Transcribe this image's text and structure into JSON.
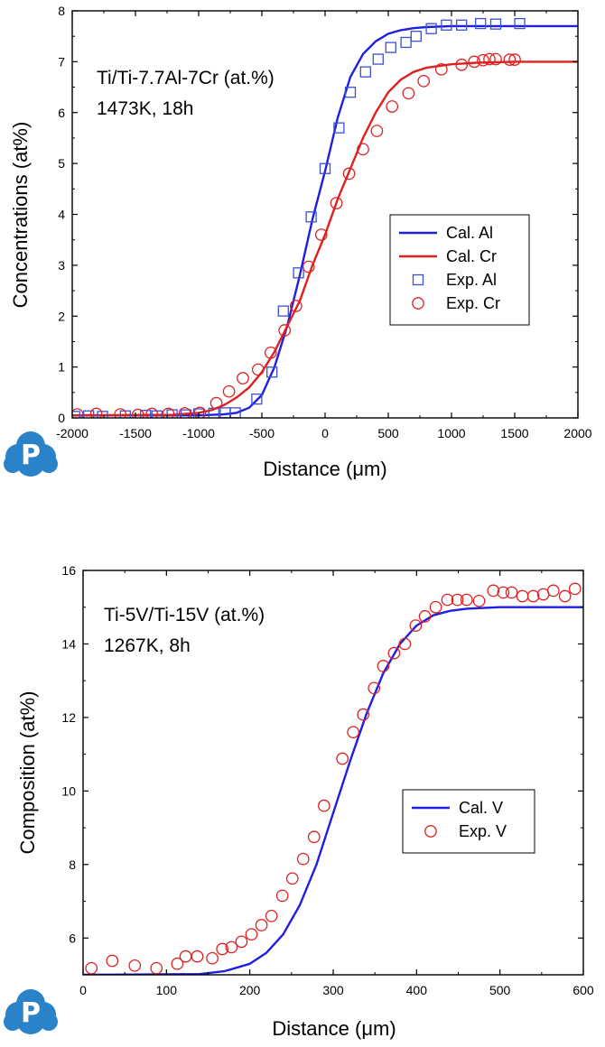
{
  "chart_data": [
    {
      "type": "line",
      "annotation": [
        "Ti/Ti-7.7Al-7Cr (at.%)",
        "1473K, 18h"
      ],
      "xlabel": "Distance (μm)",
      "ylabel": "Concentrations (at%)",
      "xlim": [
        -2000,
        2000
      ],
      "ylim": [
        0,
        8
      ],
      "xticks": [
        -2000,
        -1500,
        -1000,
        -500,
        0,
        500,
        1000,
        1500,
        2000
      ],
      "yticks": [
        0,
        1,
        2,
        3,
        4,
        5,
        6,
        7,
        8
      ],
      "legend_position": "center-right",
      "series": [
        {
          "name": "Cal. Al",
          "kind": "line",
          "color": "#1f1fe0",
          "x": [
            -2000,
            -1000,
            -800,
            -700,
            -600,
            -500,
            -400,
            -300,
            -200,
            -100,
            0,
            100,
            200,
            300,
            400,
            500,
            600,
            700,
            800,
            1000,
            1500,
            2000
          ],
          "y": [
            0.05,
            0.05,
            0.07,
            0.1,
            0.2,
            0.45,
            1.0,
            1.8,
            2.8,
            3.9,
            4.85,
            5.9,
            6.7,
            7.15,
            7.4,
            7.55,
            7.62,
            7.66,
            7.68,
            7.7,
            7.7,
            7.7
          ]
        },
        {
          "name": "Cal. Cr",
          "kind": "line",
          "color": "#e01f1f",
          "x": [
            -2000,
            -1200,
            -1000,
            -900,
            -800,
            -700,
            -600,
            -500,
            -400,
            -300,
            -200,
            -100,
            0,
            100,
            200,
            300,
            400,
            500,
            600,
            700,
            800,
            1000,
            1200,
            1500,
            2000
          ],
          "y": [
            0.05,
            0.06,
            0.1,
            0.15,
            0.25,
            0.4,
            0.6,
            0.9,
            1.3,
            1.8,
            2.3,
            3.0,
            3.6,
            4.3,
            4.9,
            5.5,
            6.0,
            6.4,
            6.65,
            6.8,
            6.88,
            6.95,
            6.98,
            7.0,
            7.0
          ]
        },
        {
          "name": "Exp. Al",
          "kind": "scatter",
          "marker": "square",
          "color": "#3a4fd6",
          "x": [
            -1980,
            -1870,
            -1760,
            -1580,
            -1420,
            -1330,
            -1210,
            -1100,
            -1000,
            -880,
            -790,
            -710,
            -540,
            -420,
            -330,
            -210,
            -110,
            0,
            110,
            200,
            320,
            420,
            520,
            640,
            720,
            840,
            960,
            1080,
            1230,
            1350,
            1540
          ],
          "y": [
            0.03,
            0.04,
            0.03,
            0.04,
            0.05,
            0.04,
            0.06,
            0.06,
            0.08,
            0.09,
            0.1,
            0.1,
            0.37,
            0.9,
            2.1,
            2.85,
            3.95,
            4.9,
            5.7,
            6.4,
            6.8,
            7.05,
            7.28,
            7.38,
            7.5,
            7.65,
            7.72,
            7.72,
            7.75,
            7.74,
            7.75
          ]
        },
        {
          "name": "Exp. Cr",
          "kind": "scatter",
          "marker": "circle",
          "color": "#e02020",
          "x": [
            -1960,
            -1810,
            -1620,
            -1480,
            -1370,
            -1240,
            -1110,
            -990,
            -860,
            -760,
            -650,
            -530,
            -430,
            -320,
            -230,
            -130,
            -30,
            90,
            190,
            300,
            410,
            530,
            660,
            780,
            920,
            1080,
            1180,
            1250,
            1300,
            1350,
            1460,
            1500
          ],
          "y": [
            0.07,
            0.08,
            0.07,
            0.06,
            0.08,
            0.08,
            0.09,
            0.1,
            0.29,
            0.52,
            0.78,
            0.95,
            1.28,
            1.72,
            2.2,
            2.97,
            3.6,
            4.22,
            4.8,
            5.28,
            5.64,
            6.12,
            6.38,
            6.62,
            6.85,
            6.94,
            7.0,
            7.03,
            7.05,
            7.05,
            7.04,
            7.04
          ]
        }
      ]
    },
    {
      "type": "line",
      "annotation": [
        "Ti-5V/Ti-15V (at.%)",
        "1267K, 8h"
      ],
      "xlabel": "Distance (μm)",
      "ylabel": "Composition (at%)",
      "xlim": [
        0,
        600
      ],
      "ylim": [
        5,
        16
      ],
      "xticks": [
        0,
        100,
        200,
        300,
        400,
        500,
        600
      ],
      "yticks": [
        6,
        8,
        10,
        12,
        14,
        16
      ],
      "legend_position": "center-right",
      "series": [
        {
          "name": "Cal. V",
          "kind": "line",
          "color": "#1f1fe0",
          "x": [
            0,
            140,
            170,
            200,
            220,
            240,
            260,
            280,
            300,
            320,
            340,
            360,
            380,
            400,
            420,
            440,
            460,
            500,
            600
          ],
          "y": [
            5.0,
            5.02,
            5.1,
            5.3,
            5.6,
            6.1,
            6.9,
            8.0,
            9.4,
            10.8,
            12.1,
            13.2,
            14.0,
            14.5,
            14.78,
            14.9,
            14.96,
            15.0,
            15.0
          ]
        },
        {
          "name": "Exp. V",
          "kind": "scatter",
          "marker": "circle",
          "color": "#e02020",
          "x": [
            10,
            35,
            62,
            88,
            113,
            123,
            137,
            155,
            167,
            178,
            190,
            202,
            214,
            226,
            239,
            251,
            264,
            277,
            289,
            311,
            324,
            336,
            349,
            360,
            373,
            386,
            399,
            410,
            423,
            437,
            449,
            460,
            475,
            492,
            504,
            514,
            527,
            540,
            552,
            564,
            578,
            590
          ],
          "y": [
            5.18,
            5.38,
            5.25,
            5.18,
            5.3,
            5.5,
            5.5,
            5.45,
            5.7,
            5.75,
            5.9,
            6.1,
            6.35,
            6.6,
            7.15,
            7.62,
            8.15,
            8.75,
            9.6,
            10.88,
            11.6,
            12.08,
            12.8,
            13.4,
            13.75,
            14.0,
            14.5,
            14.75,
            15.0,
            15.2,
            15.2,
            15.2,
            15.17,
            15.45,
            15.4,
            15.4,
            15.3,
            15.3,
            15.35,
            15.45,
            15.3,
            15.5
          ]
        }
      ]
    }
  ]
}
